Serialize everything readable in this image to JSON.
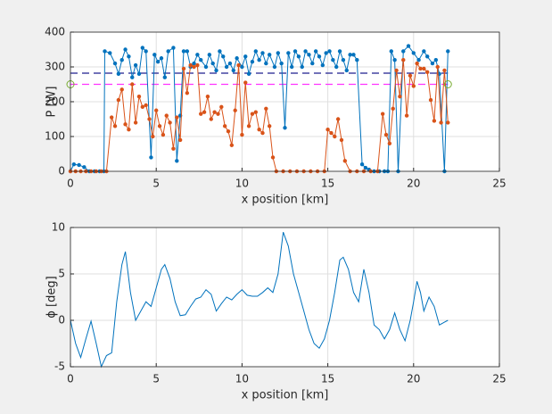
{
  "chart_data": [
    {
      "type": "line",
      "xlabel": "x position [km]",
      "ylabel": "P [W]",
      "xlim": [
        0,
        25
      ],
      "xticks": [
        0,
        5,
        10,
        15,
        20,
        25
      ],
      "ylim": [
        0,
        400
      ],
      "yticks": [
        0,
        100,
        200,
        300,
        400
      ],
      "grid": true,
      "markers": true,
      "series": [
        {
          "color": "#0072bd",
          "x": [
            0,
            0.2,
            0.5,
            0.8,
            1.1,
            1.4,
            1.7,
            1.95,
            2.0,
            2.3,
            2.6,
            2.8,
            3.0,
            3.2,
            3.4,
            3.6,
            3.8,
            4.0,
            4.2,
            4.4,
            4.7,
            4.9,
            5.1,
            5.3,
            5.5,
            5.7,
            6.0,
            6.2,
            6.4,
            6.6,
            6.8,
            7.0,
            7.2,
            7.4,
            7.6,
            7.9,
            8.1,
            8.3,
            8.5,
            8.7,
            8.9,
            9.1,
            9.3,
            9.5,
            9.7,
            10.0,
            10.2,
            10.4,
            10.6,
            10.8,
            11.0,
            11.2,
            11.4,
            11.6,
            11.9,
            12.1,
            12.3,
            12.5,
            12.7,
            12.9,
            13.1,
            13.3,
            13.5,
            13.7,
            13.9,
            14.1,
            14.3,
            14.5,
            14.7,
            14.9,
            15.1,
            15.3,
            15.5,
            15.7,
            15.9,
            16.1,
            16.3,
            16.5,
            16.7,
            17.0,
            17.2,
            17.4,
            17.7,
            18.0,
            18.3,
            18.5,
            18.7,
            18.9,
            19.1,
            19.4,
            19.7,
            20.0,
            20.3,
            20.6,
            20.8,
            21.1,
            21.3,
            21.5,
            21.8,
            22.0
          ],
          "values": [
            0,
            20,
            18,
            12,
            0,
            0,
            0,
            0,
            345,
            340,
            310,
            280,
            320,
            350,
            330,
            270,
            305,
            280,
            355,
            345,
            40,
            335,
            315,
            325,
            270,
            345,
            355,
            30,
            160,
            345,
            345,
            300,
            310,
            335,
            320,
            300,
            335,
            310,
            290,
            345,
            330,
            300,
            310,
            290,
            325,
            300,
            330,
            280,
            315,
            345,
            320,
            340,
            310,
            335,
            300,
            340,
            310,
            125,
            340,
            300,
            345,
            330,
            300,
            345,
            335,
            310,
            345,
            330,
            305,
            340,
            345,
            320,
            300,
            345,
            320,
            290,
            335,
            335,
            320,
            20,
            10,
            5,
            0,
            0,
            0,
            0,
            345,
            320,
            0,
            345,
            360,
            340,
            320,
            345,
            330,
            310,
            320,
            280,
            0,
            345
          ]
        },
        {
          "color": "#d95319",
          "x": [
            0,
            0.3,
            0.6,
            0.9,
            1.2,
            1.5,
            1.8,
            2.1,
            2.4,
            2.6,
            2.8,
            3.0,
            3.2,
            3.4,
            3.6,
            3.8,
            4.0,
            4.2,
            4.4,
            4.6,
            4.8,
            5.0,
            5.2,
            5.4,
            5.6,
            5.8,
            6.0,
            6.2,
            6.4,
            6.6,
            6.8,
            7.0,
            7.2,
            7.4,
            7.6,
            7.8,
            8.0,
            8.2,
            8.4,
            8.6,
            8.8,
            9.0,
            9.2,
            9.4,
            9.6,
            9.8,
            10.0,
            10.2,
            10.4,
            10.6,
            10.8,
            11.0,
            11.2,
            11.4,
            11.6,
            11.8,
            12.0,
            12.4,
            12.8,
            13.2,
            13.6,
            14.0,
            14.4,
            14.8,
            15.0,
            15.2,
            15.4,
            15.6,
            15.8,
            16.0,
            16.3,
            16.7,
            17.1,
            17.5,
            17.9,
            18.2,
            18.4,
            18.6,
            18.8,
            19.0,
            19.2,
            19.4,
            19.6,
            19.8,
            20.0,
            20.2,
            20.4,
            20.6,
            20.8,
            21.0,
            21.2,
            21.4,
            21.6,
            21.8,
            22.0
          ],
          "values": [
            0,
            0,
            0,
            0,
            0,
            0,
            0,
            0,
            155,
            130,
            205,
            235,
            135,
            120,
            250,
            140,
            215,
            185,
            190,
            150,
            100,
            175,
            130,
            105,
            160,
            140,
            65,
            155,
            90,
            295,
            225,
            305,
            300,
            305,
            165,
            170,
            215,
            150,
            170,
            165,
            185,
            130,
            115,
            75,
            175,
            305,
            105,
            255,
            130,
            165,
            170,
            120,
            110,
            180,
            130,
            40,
            0,
            0,
            0,
            0,
            0,
            0,
            0,
            0,
            120,
            110,
            100,
            150,
            90,
            30,
            0,
            0,
            0,
            0,
            0,
            165,
            105,
            80,
            180,
            290,
            215,
            320,
            160,
            275,
            245,
            310,
            295,
            295,
            285,
            205,
            145,
            300,
            140,
            290,
            140
          ]
        }
      ],
      "hlines": [
        {
          "value": 282,
          "color": "#1f1f8f"
        },
        {
          "value": 250,
          "color": "#ff33ff"
        }
      ],
      "circles": {
        "x": [
          0,
          22
        ],
        "values": [
          250,
          250
        ],
        "color": "#77ac30"
      }
    },
    {
      "type": "line",
      "xlabel": "x position [km]",
      "ylabel": "ϕ [deg]",
      "xlim": [
        0,
        25
      ],
      "xticks": [
        0,
        5,
        10,
        15,
        20,
        25
      ],
      "ylim": [
        -5,
        10
      ],
      "yticks": [
        -5,
        0,
        5,
        10
      ],
      "grid": true,
      "markers": false,
      "series": [
        {
          "color": "#0072bd",
          "x": [
            0,
            0.3,
            0.6,
            0.9,
            1.2,
            1.5,
            1.8,
            2.1,
            2.4,
            2.7,
            3.0,
            3.2,
            3.5,
            3.8,
            4.1,
            4.4,
            4.7,
            5.0,
            5.3,
            5.5,
            5.8,
            6.1,
            6.4,
            6.7,
            7.0,
            7.3,
            7.6,
            7.9,
            8.2,
            8.5,
            8.8,
            9.1,
            9.4,
            9.7,
            10.0,
            10.3,
            10.6,
            10.9,
            11.2,
            11.5,
            11.8,
            12.1,
            12.4,
            12.7,
            13.0,
            13.3,
            13.6,
            13.9,
            14.2,
            14.5,
            14.8,
            15.1,
            15.4,
            15.7,
            15.9,
            16.2,
            16.5,
            16.8,
            17.1,
            17.4,
            17.7,
            18.0,
            18.3,
            18.6,
            18.9,
            19.2,
            19.5,
            19.8,
            20.0,
            20.2,
            20.4,
            20.6,
            20.9,
            21.2,
            21.5,
            21.8,
            22.0
          ],
          "values": [
            0,
            -2.5,
            -4,
            -2,
            -0.1,
            -2.5,
            -5,
            -3.8,
            -3.5,
            2,
            6,
            7.4,
            3,
            0,
            1,
            2,
            1.5,
            3.5,
            5.5,
            6,
            4.5,
            2,
            0.5,
            0.6,
            1.5,
            2.3,
            2.5,
            3.3,
            2.8,
            1,
            1.8,
            2.5,
            2.2,
            2.8,
            3.3,
            2.7,
            2.6,
            2.6,
            3,
            3.5,
            3,
            5,
            9.5,
            8,
            5,
            3,
            1,
            -1,
            -2.5,
            -3,
            -2,
            0,
            3,
            6.5,
            6.8,
            5.5,
            3,
            2,
            5.5,
            3,
            -0.5,
            -1,
            -2,
            -1,
            0.8,
            -1,
            -2.2,
            0,
            2,
            4.2,
            3,
            1,
            2.5,
            1.5,
            -0.5,
            -0.2,
            0
          ]
        }
      ]
    }
  ]
}
